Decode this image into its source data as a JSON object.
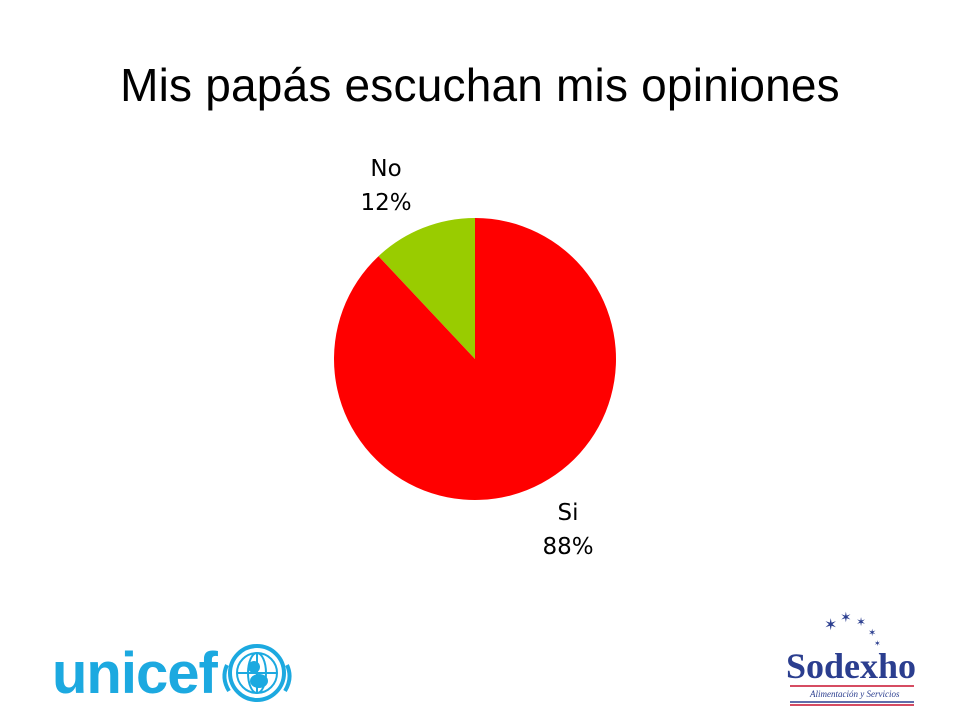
{
  "title": "Mis papás escuchan mis opiniones",
  "chart_data": {
    "type": "pie",
    "title": "Mis papás escuchan mis opiniones",
    "slices": [
      {
        "label": "No",
        "percent_text": "12%",
        "value": 12,
        "color": "#99CC00"
      },
      {
        "label": "Si",
        "percent_text": "88%",
        "value": 88,
        "color": "#FF0000"
      }
    ],
    "start_angle_deg": 0,
    "direction": "counterclockwise",
    "legend": "none"
  },
  "logos": {
    "unicef": {
      "text": "unicef",
      "color": "#1CA9E0"
    },
    "sodexho": {
      "text": "Sodexho",
      "tagline": "Alimentación y Servicios",
      "color": "#2B3E8F",
      "accent": "#C8102E"
    }
  }
}
